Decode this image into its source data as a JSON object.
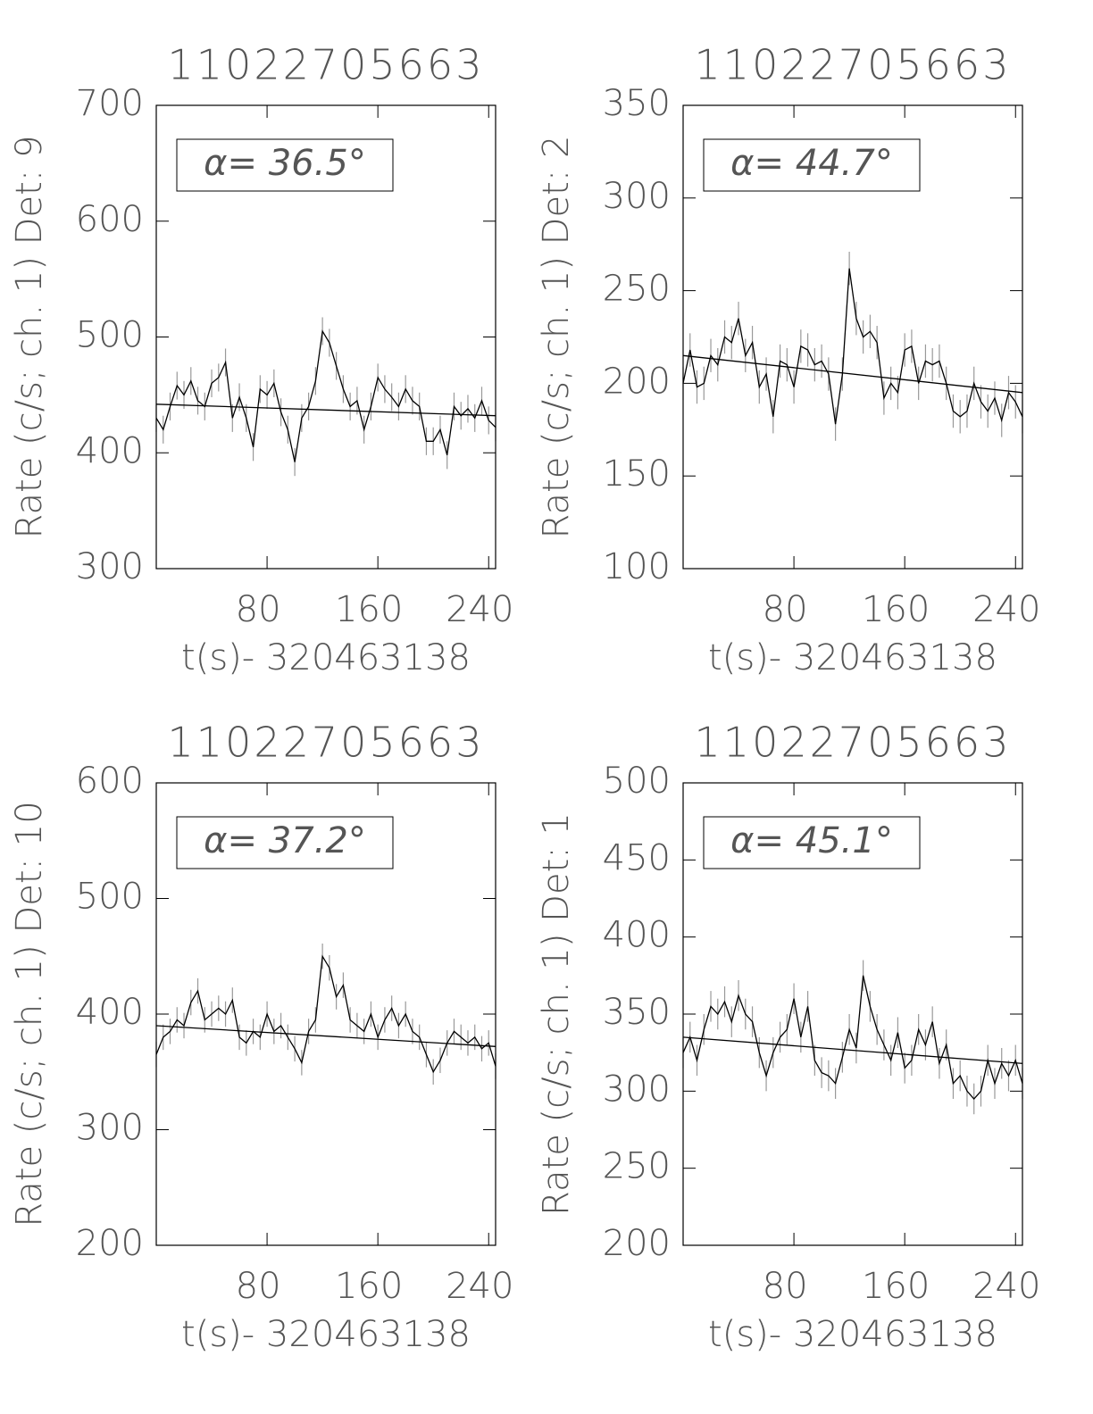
{
  "chart_data": [
    {
      "type": "line",
      "title": "11022705663",
      "xlabel": "t(s)- 320463138",
      "ylabel": "Rate (c/s; ch. 1) Det: 9",
      "annotation": "α= 36.5°",
      "xlim": [
        0,
        245
      ],
      "xticks": [
        80,
        160,
        240
      ],
      "ylim": [
        300,
        700
      ],
      "yticks": [
        300,
        400,
        500,
        600,
        700
      ],
      "x": [
        0,
        5,
        10,
        15,
        20,
        25,
        30,
        35,
        40,
        45,
        50,
        55,
        60,
        65,
        70,
        75,
        80,
        85,
        90,
        95,
        100,
        105,
        110,
        115,
        120,
        125,
        130,
        135,
        140,
        145,
        150,
        155,
        160,
        165,
        170,
        175,
        180,
        185,
        190,
        195,
        200,
        205,
        210,
        215,
        220,
        225,
        230,
        235,
        240,
        245
      ],
      "series": [
        {
          "color": "#000000",
          "error": 12,
          "values": [
            430,
            420,
            440,
            458,
            450,
            462,
            445,
            440,
            460,
            465,
            478,
            430,
            448,
            430,
            405,
            455,
            450,
            460,
            435,
            420,
            392,
            430,
            440,
            462,
            505,
            495,
            475,
            455,
            440,
            445,
            420,
            440,
            465,
            455,
            448,
            440,
            455,
            445,
            440,
            410,
            410,
            420,
            398,
            440,
            432,
            438,
            430,
            445,
            428,
            422
          ]
        },
        {
          "color": "#000000",
          "x": [
            0,
            245
          ],
          "values": [
            442,
            432
          ]
        }
      ]
    },
    {
      "type": "line",
      "title": "11022705663",
      "xlabel": "t(s)- 320463138",
      "ylabel": "Rate (c/s; ch. 1) Det: 2",
      "annotation": "α= 44.7°",
      "xlim": [
        0,
        245
      ],
      "xticks": [
        80,
        160,
        240
      ],
      "ylim": [
        100,
        350
      ],
      "yticks": [
        100,
        150,
        200,
        250,
        300,
        350
      ],
      "x": [
        0,
        5,
        10,
        15,
        20,
        25,
        30,
        35,
        40,
        45,
        50,
        55,
        60,
        65,
        70,
        75,
        80,
        85,
        90,
        95,
        100,
        105,
        110,
        115,
        120,
        125,
        130,
        135,
        140,
        145,
        150,
        155,
        160,
        165,
        170,
        175,
        180,
        185,
        190,
        195,
        200,
        205,
        210,
        215,
        220,
        225,
        230,
        235,
        240,
        245
      ],
      "series": [
        {
          "color": "#000000",
          "error": 9,
          "values": [
            200,
            218,
            198,
            200,
            215,
            210,
            225,
            222,
            235,
            215,
            222,
            198,
            205,
            182,
            212,
            210,
            198,
            220,
            218,
            210,
            212,
            205,
            178,
            205,
            262,
            235,
            225,
            228,
            222,
            192,
            200,
            195,
            218,
            220,
            200,
            212,
            210,
            212,
            200,
            185,
            182,
            185,
            200,
            190,
            185,
            192,
            180,
            195,
            190,
            182
          ]
        },
        {
          "color": "#000000",
          "x": [
            0,
            245
          ],
          "values": [
            215,
            195
          ]
        }
      ]
    },
    {
      "type": "line",
      "title": "11022705663",
      "xlabel": "t(s)- 320463138",
      "ylabel": "Rate (c/s; ch. 1) Det: 10",
      "annotation": "α= 37.2°",
      "xlim": [
        0,
        245
      ],
      "xticks": [
        80,
        160,
        240
      ],
      "ylim": [
        200,
        600
      ],
      "yticks": [
        200,
        300,
        400,
        500,
        600
      ],
      "x": [
        0,
        5,
        10,
        15,
        20,
        25,
        30,
        35,
        40,
        45,
        50,
        55,
        60,
        65,
        70,
        75,
        80,
        85,
        90,
        95,
        100,
        105,
        110,
        115,
        120,
        125,
        130,
        135,
        140,
        145,
        150,
        155,
        160,
        165,
        170,
        175,
        180,
        185,
        190,
        195,
        200,
        205,
        210,
        215,
        220,
        225,
        230,
        235,
        240,
        245
      ],
      "series": [
        {
          "color": "#000000",
          "error": 11,
          "values": [
            365,
            380,
            385,
            395,
            390,
            410,
            420,
            395,
            400,
            405,
            400,
            412,
            380,
            375,
            385,
            380,
            400,
            385,
            390,
            380,
            370,
            358,
            385,
            395,
            450,
            440,
            415,
            425,
            395,
            390,
            385,
            400,
            380,
            395,
            405,
            390,
            400,
            385,
            380,
            365,
            350,
            360,
            375,
            385,
            380,
            375,
            380,
            370,
            375,
            355
          ]
        },
        {
          "color": "#000000",
          "x": [
            0,
            245
          ],
          "values": [
            390,
            372
          ]
        }
      ]
    },
    {
      "type": "line",
      "title": "11022705663",
      "xlabel": "t(s)- 320463138",
      "ylabel": "Rate (c/s; ch. 1) Det: 1",
      "annotation": "α= 45.1°",
      "xlim": [
        0,
        245
      ],
      "xticks": [
        80,
        160,
        240
      ],
      "ylim": [
        200,
        500
      ],
      "yticks": [
        200,
        250,
        300,
        350,
        400,
        450,
        500
      ],
      "x": [
        0,
        5,
        10,
        15,
        20,
        25,
        30,
        35,
        40,
        45,
        50,
        55,
        60,
        65,
        70,
        75,
        80,
        85,
        90,
        95,
        100,
        105,
        110,
        115,
        120,
        125,
        130,
        135,
        140,
        145,
        150,
        155,
        160,
        165,
        170,
        175,
        180,
        185,
        190,
        195,
        200,
        205,
        210,
        215,
        220,
        225,
        230,
        235,
        240,
        245
      ],
      "series": [
        {
          "color": "#000000",
          "error": 10,
          "values": [
            325,
            335,
            320,
            340,
            355,
            350,
            358,
            345,
            362,
            350,
            345,
            325,
            310,
            325,
            335,
            340,
            360,
            335,
            355,
            320,
            312,
            310,
            305,
            322,
            340,
            328,
            375,
            355,
            340,
            330,
            320,
            338,
            315,
            320,
            340,
            330,
            345,
            318,
            330,
            305,
            310,
            300,
            295,
            300,
            320,
            305,
            318,
            310,
            320,
            305
          ]
        },
        {
          "color": "#000000",
          "x": [
            0,
            245
          ],
          "values": [
            335,
            318
          ]
        }
      ]
    }
  ]
}
